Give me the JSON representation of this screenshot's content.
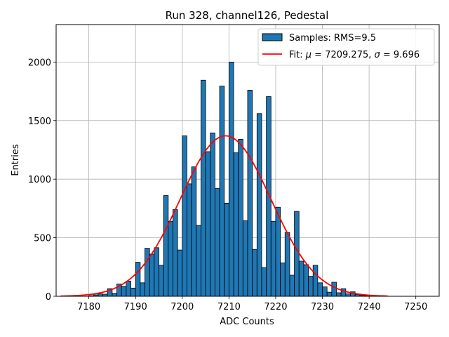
{
  "chart_data": {
    "type": "bar",
    "title": "Run 328, channel126, Pedestal",
    "xlabel": "ADC Counts",
    "ylabel": "Entries",
    "xlim": [
      7173,
      7255
    ],
    "ylim": [
      0,
      2320
    ],
    "x_ticks": [
      7180,
      7190,
      7200,
      7210,
      7220,
      7230,
      7240,
      7250
    ],
    "y_ticks": [
      0,
      500,
      1000,
      1500,
      2000
    ],
    "grid": true,
    "legend_position": "top-right",
    "bin_width": 1,
    "histogram": {
      "name": "Samples: RMS=9.5",
      "color": "#1f77b4",
      "edge_color": "#000000",
      "bins_start": [
        7180,
        7181,
        7182,
        7183,
        7184,
        7185,
        7186,
        7187,
        7188,
        7189,
        7190,
        7191,
        7192,
        7193,
        7194,
        7195,
        7196,
        7197,
        7198,
        7199,
        7200,
        7201,
        7202,
        7203,
        7204,
        7205,
        7206,
        7207,
        7208,
        7209,
        7210,
        7211,
        7212,
        7213,
        7214,
        7215,
        7216,
        7217,
        7218,
        7219,
        7220,
        7221,
        7222,
        7223,
        7224,
        7225,
        7226,
        7227,
        7228,
        7229,
        7230,
        7231,
        7232,
        7233,
        7234,
        7235,
        7236,
        7237,
        7238,
        7239,
        7240
      ],
      "counts": [
        5,
        12,
        20,
        18,
        65,
        25,
        105,
        85,
        130,
        70,
        290,
        115,
        410,
        360,
        415,
        265,
        860,
        640,
        740,
        395,
        1370,
        960,
        1105,
        605,
        1845,
        1235,
        1395,
        920,
        1795,
        795,
        2000,
        1225,
        1340,
        645,
        1760,
        400,
        1560,
        245,
        1705,
        640,
        760,
        285,
        545,
        180,
        725,
        300,
        270,
        170,
        265,
        115,
        80,
        35,
        120,
        30,
        65,
        20,
        38,
        15,
        8,
        6,
        4
      ]
    },
    "fit": {
      "name": "Fit: μ = 7209.275, σ = 9.696",
      "label_prefix": "Fit: ",
      "label_mu_symbol": "μ",
      "label_mu_text": " = 7209.275, ",
      "label_sigma_symbol": "σ",
      "label_sigma_text": " = 9.696",
      "mu": 7209.275,
      "sigma": 9.696,
      "peak": 1370,
      "x_range": [
        7174,
        7244
      ],
      "color": "#ff0000"
    },
    "legend": [
      {
        "label": "Samples: RMS=9.5",
        "kind": "patch",
        "color": "#1f77b4"
      },
      {
        "label": "Fit: μ = 7209.275, σ = 9.696",
        "kind": "line",
        "color": "#ff0000"
      }
    ]
  }
}
